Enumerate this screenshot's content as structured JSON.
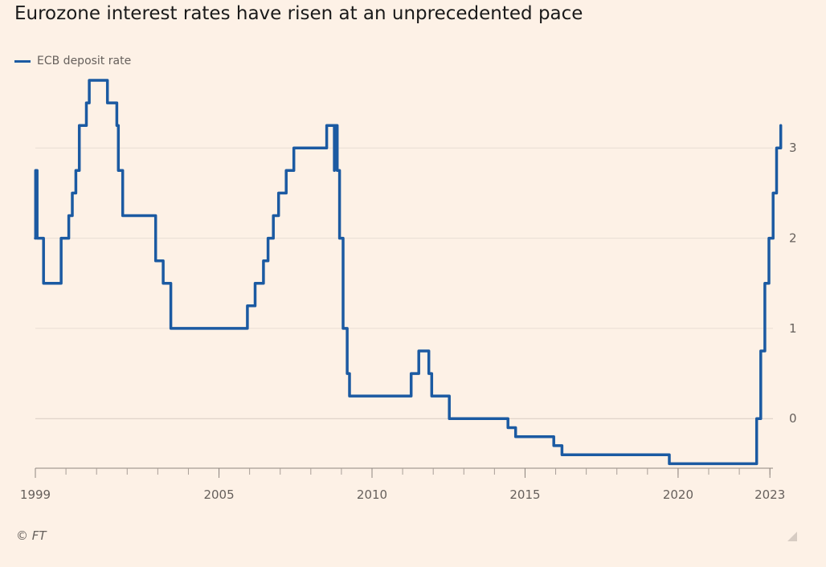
{
  "title": "Eurozone interest rates have risen at an unprecedented pace",
  "source": "© FT",
  "colors": {
    "background": "#fdf1e6",
    "series": "#1b5aa2",
    "grid": "#e8ddd3",
    "axis": "#66605c",
    "text": "#66605c"
  },
  "chart_data": {
    "type": "line",
    "title": "Eurozone interest rates have risen at an unprecedented pace",
    "xlabel": "",
    "ylabel": "",
    "xlim": [
      1999.0,
      2023.1
    ],
    "ylim": [
      -0.55,
      3.75
    ],
    "x_ticks": [
      "1999",
      "2005",
      "2010",
      "2015",
      "2020",
      "2023"
    ],
    "y_ticks": [
      "0",
      "1",
      "2",
      "3"
    ],
    "grid": "horizontal",
    "y_axis_side": "right",
    "legend_position": "top-left",
    "series": [
      {
        "name": "ECB deposit rate",
        "points": [
          [
            "1999-01-01",
            2.0
          ],
          [
            "1999-01-04",
            2.75
          ],
          [
            "1999-01-22",
            2.0
          ],
          [
            "1999-04-09",
            1.5
          ],
          [
            "1999-11-05",
            2.0
          ],
          [
            "2000-02-04",
            2.25
          ],
          [
            "2000-03-17",
            2.5
          ],
          [
            "2000-04-28",
            2.75
          ],
          [
            "2000-06-09",
            3.25
          ],
          [
            "2000-09-01",
            3.5
          ],
          [
            "2000-10-06",
            3.75
          ],
          [
            "2001-05-11",
            3.5
          ],
          [
            "2001-08-31",
            3.25
          ],
          [
            "2001-09-18",
            2.75
          ],
          [
            "2001-11-09",
            2.25
          ],
          [
            "2002-12-06",
            1.75
          ],
          [
            "2003-03-07",
            1.5
          ],
          [
            "2003-06-06",
            1.0
          ],
          [
            "2005-12-06",
            1.25
          ],
          [
            "2006-03-08",
            1.5
          ],
          [
            "2006-06-15",
            1.75
          ],
          [
            "2006-08-09",
            2.0
          ],
          [
            "2006-10-11",
            2.25
          ],
          [
            "2006-12-13",
            2.5
          ],
          [
            "2007-03-14",
            2.75
          ],
          [
            "2007-06-13",
            3.0
          ],
          [
            "2008-07-09",
            3.25
          ],
          [
            "2008-10-08",
            2.75
          ],
          [
            "2008-10-09",
            3.25
          ],
          [
            "2008-11-12",
            2.75
          ],
          [
            "2008-12-10",
            2.0
          ],
          [
            "2009-01-21",
            1.0
          ],
          [
            "2009-03-11",
            0.5
          ],
          [
            "2009-04-08",
            0.25
          ],
          [
            "2011-04-13",
            0.5
          ],
          [
            "2011-07-13",
            0.75
          ],
          [
            "2011-11-09",
            0.5
          ],
          [
            "2011-12-14",
            0.25
          ],
          [
            "2012-07-11",
            0.0
          ],
          [
            "2014-06-11",
            -0.1
          ],
          [
            "2014-09-10",
            -0.2
          ],
          [
            "2015-12-09",
            -0.3
          ],
          [
            "2016-03-16",
            -0.4
          ],
          [
            "2019-09-18",
            -0.5
          ],
          [
            "2022-07-27",
            0.0
          ],
          [
            "2022-09-14",
            0.75
          ],
          [
            "2022-11-02",
            1.5
          ],
          [
            "2022-12-21",
            2.0
          ],
          [
            "2023-02-08",
            2.5
          ],
          [
            "2023-03-22",
            3.0
          ],
          [
            "2023-05-10",
            3.25
          ]
        ]
      }
    ]
  }
}
